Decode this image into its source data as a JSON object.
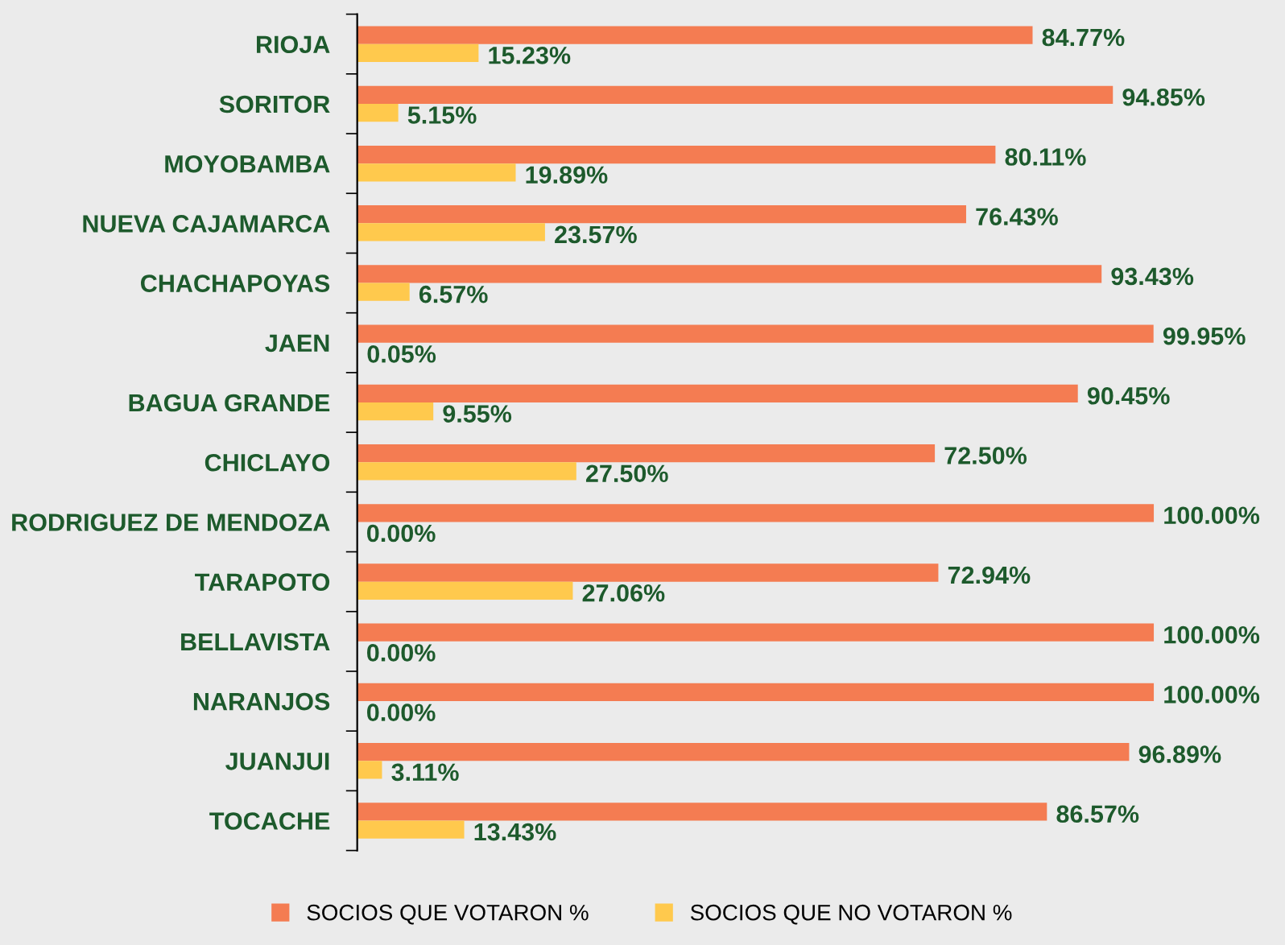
{
  "chart_data": {
    "type": "bar",
    "orientation": "horizontal",
    "legend": "bottom",
    "categories": [
      "RIOJA",
      "SORITOR",
      "MOYOBAMBA",
      "NUEVA CAJAMARCA",
      "CHACHAPOYAS",
      "JAEN",
      "BAGUA GRANDE",
      "CHICLAYO",
      "RODRIGUEZ DE MENDOZA",
      "TARAPOTO",
      "BELLAVISTA",
      "NARANJOS",
      "JUANJUI",
      "TOCACHE"
    ],
    "series": [
      {
        "name": "SOCIOS QUE VOTARON %",
        "color": "#f47c52",
        "values": [
          84.77,
          94.85,
          80.11,
          76.43,
          93.43,
          99.95,
          90.45,
          72.5,
          100.0,
          72.94,
          100.0,
          100.0,
          96.89,
          86.57
        ],
        "value_labels": [
          "84.77%",
          "94.85%",
          "80.11%",
          "76.43%",
          "93.43%",
          "99.95%",
          "90.45%",
          "72.50%",
          "100.00%",
          "72.94%",
          "100.00%",
          "100.00%",
          "96.89%",
          "86.57%"
        ]
      },
      {
        "name": "SOCIOS QUE NO VOTARON %",
        "color": "#ffc94d",
        "values": [
          15.23,
          5.15,
          19.89,
          23.57,
          6.57,
          0.05,
          9.55,
          27.5,
          0.0,
          27.06,
          0.0,
          0.0,
          3.11,
          13.43
        ],
        "value_labels": [
          "15.23%",
          "5.15%",
          "19.89%",
          "23.57%",
          "6.57%",
          "0.05%",
          "9.55%",
          "27.50%",
          "0.00%",
          "27.06%",
          "0.00%",
          "0.00%",
          "3.11%",
          "13.43%"
        ]
      }
    ]
  }
}
